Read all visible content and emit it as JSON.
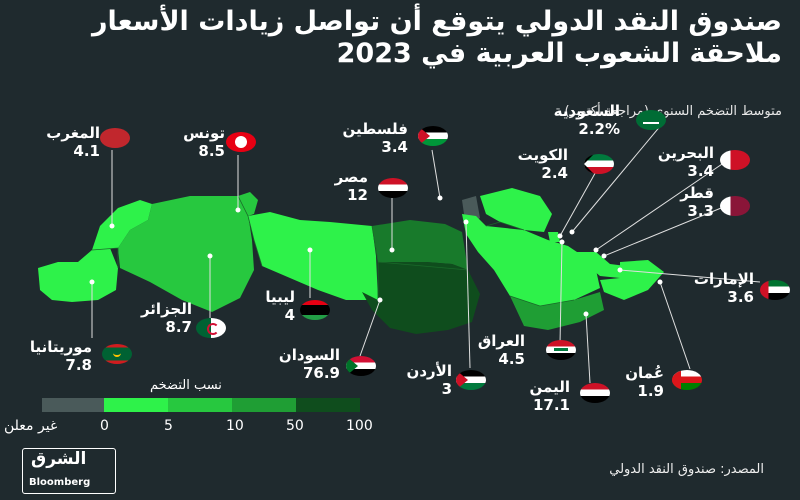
{
  "title": "صندوق النقد الدولي يتوقع أن تواصل زيادات الأسعار ملاحقة الشعوب العربية في 2023",
  "subtitle": "متوسط التضخم السنوي (مراجعة أكتوبر)",
  "legend": {
    "title": "نسب التضخم",
    "ticks": [
      "0",
      "5",
      "10",
      "50",
      "100"
    ],
    "not_reported": "غير معلن",
    "colors": [
      "#4a5a5a",
      "#2ef24a",
      "#27c83f",
      "#1f9e34",
      "#187a2b",
      "#0f4d1d"
    ]
  },
  "countries": [
    {
      "name": "المغرب",
      "value": "4.1",
      "flag": "morocco-flag"
    },
    {
      "name": "تونس",
      "value": "8.5",
      "flag": "tunisia-flag"
    },
    {
      "name": "فلسطين",
      "value": "3.4",
      "flag": "palestine-flag"
    },
    {
      "name": "السعودية",
      "value": "2.2%",
      "flag": "saudi-flag"
    },
    {
      "name": "البحرين",
      "value": "3.4",
      "flag": "bahrain-flag"
    },
    {
      "name": "الكويت",
      "value": "2.4",
      "flag": "kuwait-flag"
    },
    {
      "name": "مصر",
      "value": "12",
      "flag": "egypt-flag"
    },
    {
      "name": "قطر",
      "value": "3.3",
      "flag": "qatar-flag"
    },
    {
      "name": "الإمارات",
      "value": "3.6",
      "flag": "uae-flag"
    },
    {
      "name": "ليبيا",
      "value": "4",
      "flag": "libya-flag"
    },
    {
      "name": "الجزائر",
      "value": "8.7",
      "flag": "algeria-flag"
    },
    {
      "name": "موريتانيا",
      "value": "7.8",
      "flag": "mauritania-flag"
    },
    {
      "name": "السودان",
      "value": "76.9",
      "flag": "sudan-flag"
    },
    {
      "name": "العراق",
      "value": "4.5",
      "flag": "iraq-flag"
    },
    {
      "name": "الأردن",
      "value": "3",
      "flag": "jordan-flag"
    },
    {
      "name": "عُمان",
      "value": "1.9",
      "flag": "oman-flag"
    },
    {
      "name": "اليمن",
      "value": "17.1",
      "flag": "yemen-flag"
    }
  ],
  "logo": {
    "ar": "الشرق",
    "en": "Bloomberg"
  },
  "source": "المصدر: صندوق النقد الدولي"
}
